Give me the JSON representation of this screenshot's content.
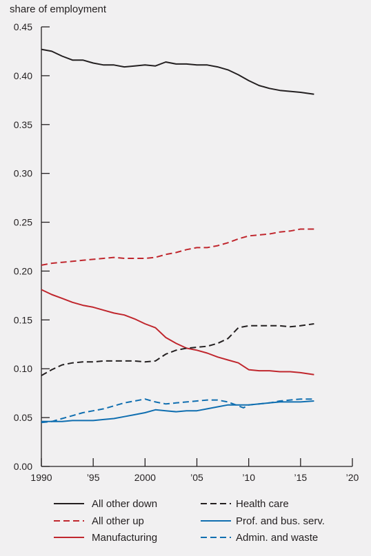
{
  "chart_data": {
    "type": "line",
    "ylabel": "share of employment",
    "ylim": [
      0,
      0.45
    ],
    "xlim": [
      1990,
      2020
    ],
    "y_ticks": [
      "0.00",
      "0.05",
      "0.10",
      "0.15",
      "0.20",
      "0.25",
      "0.30",
      "0.35",
      "0.40",
      "0.45"
    ],
    "x_ticks": [
      {
        "value": 1990,
        "label": "1990"
      },
      {
        "value": 1995,
        "label": "’95"
      },
      {
        "value": 2000,
        "label": "2000"
      },
      {
        "value": 2005,
        "label": "’05"
      },
      {
        "value": 2010,
        "label": "’10"
      },
      {
        "value": 2015,
        "label": "’15"
      },
      {
        "value": 2020,
        "label": "’20"
      }
    ],
    "grid": false,
    "legend_position": "bottom",
    "series": [
      {
        "name": "All other down",
        "color": "#231f20",
        "dash": "solid",
        "x": [
          1990,
          1991,
          1992,
          1993,
          1994,
          1995,
          1996,
          1997,
          1998,
          1999,
          2000,
          2001,
          2002,
          2003,
          2004,
          2005,
          2006,
          2007,
          2008,
          2009,
          2010,
          2011,
          2012,
          2013,
          2014,
          2015,
          2016.3
        ],
        "y": [
          0.427,
          0.425,
          0.42,
          0.416,
          0.416,
          0.413,
          0.411,
          0.411,
          0.409,
          0.41,
          0.411,
          0.41,
          0.414,
          0.412,
          0.412,
          0.411,
          0.411,
          0.409,
          0.406,
          0.401,
          0.395,
          0.39,
          0.387,
          0.385,
          0.384,
          0.383,
          0.381
        ]
      },
      {
        "name": "All other up",
        "color": "#c0262d",
        "dash": "dashed",
        "x": [
          1990,
          1991,
          1992,
          1993,
          1994,
          1995,
          1996,
          1997,
          1998,
          1999,
          2000,
          2001,
          2002,
          2003,
          2004,
          2005,
          2006,
          2007,
          2008,
          2009,
          2010,
          2011,
          2012,
          2013,
          2014,
          2015,
          2016.3
        ],
        "y": [
          0.206,
          0.208,
          0.209,
          0.21,
          0.211,
          0.212,
          0.213,
          0.214,
          0.213,
          0.213,
          0.213,
          0.214,
          0.217,
          0.219,
          0.222,
          0.224,
          0.224,
          0.226,
          0.229,
          0.233,
          0.236,
          0.237,
          0.238,
          0.24,
          0.241,
          0.243,
          0.243
        ]
      },
      {
        "name": "Manufacturing",
        "color": "#c0262d",
        "dash": "solid",
        "x": [
          1990,
          1991,
          1992,
          1993,
          1994,
          1995,
          1996,
          1997,
          1998,
          1999,
          2000,
          2001,
          2002,
          2003,
          2004,
          2005,
          2006,
          2007,
          2008,
          2009,
          2010,
          2011,
          2012,
          2013,
          2014,
          2015,
          2016.3
        ],
        "y": [
          0.181,
          0.176,
          0.172,
          0.168,
          0.165,
          0.163,
          0.16,
          0.157,
          0.155,
          0.151,
          0.146,
          0.142,
          0.132,
          0.126,
          0.121,
          0.119,
          0.116,
          0.112,
          0.109,
          0.106,
          0.099,
          0.098,
          0.098,
          0.097,
          0.097,
          0.096,
          0.094
        ]
      },
      {
        "name": "Health care",
        "color": "#231f20",
        "dash": "dashed",
        "x": [
          1990,
          1991,
          1992,
          1993,
          1994,
          1995,
          1996,
          1997,
          1998,
          1999,
          2000,
          2001,
          2002,
          2003,
          2004,
          2005,
          2006,
          2007,
          2008,
          2009,
          2010,
          2011,
          2012,
          2013,
          2014,
          2015,
          2016.3
        ],
        "y": [
          0.093,
          0.099,
          0.104,
          0.106,
          0.107,
          0.107,
          0.108,
          0.108,
          0.108,
          0.108,
          0.107,
          0.108,
          0.115,
          0.119,
          0.121,
          0.122,
          0.123,
          0.126,
          0.131,
          0.142,
          0.144,
          0.144,
          0.144,
          0.144,
          0.143,
          0.144,
          0.146
        ]
      },
      {
        "name": "Prof. and bus. serv.",
        "color": "#0f6eb0",
        "dash": "solid",
        "x": [
          1990,
          1991,
          1992,
          1993,
          1994,
          1995,
          1996,
          1997,
          1998,
          1999,
          2000,
          2001,
          2002,
          2003,
          2004,
          2005,
          2006,
          2007,
          2008,
          2009,
          2010,
          2011,
          2012,
          2013,
          2014,
          2015,
          2016.3
        ],
        "y": [
          0.046,
          0.046,
          0.046,
          0.047,
          0.047,
          0.047,
          0.048,
          0.049,
          0.051,
          0.053,
          0.055,
          0.058,
          0.057,
          0.056,
          0.057,
          0.057,
          0.059,
          0.061,
          0.063,
          0.063,
          0.063,
          0.064,
          0.065,
          0.066,
          0.066,
          0.066,
          0.067
        ]
      },
      {
        "name": "Admin. and waste",
        "color": "#0f6eb0",
        "dash": "dashed",
        "x": [
          1990,
          1991,
          1992,
          1993,
          1994,
          1995,
          1996,
          1997,
          1998,
          1999,
          2000,
          2001,
          2002,
          2003,
          2004,
          2005,
          2006,
          2007,
          2008,
          2009,
          2009.5,
          2010,
          2011,
          2012,
          2013,
          2014,
          2015,
          2016.3
        ],
        "y": [
          0.045,
          0.046,
          0.049,
          0.052,
          0.055,
          0.057,
          0.059,
          0.062,
          0.065,
          0.067,
          0.069,
          0.066,
          0.064,
          0.065,
          0.066,
          0.067,
          0.068,
          0.068,
          0.066,
          0.062,
          0.06,
          0.063,
          0.064,
          0.065,
          0.067,
          0.068,
          0.069,
          0.069
        ]
      }
    ]
  }
}
